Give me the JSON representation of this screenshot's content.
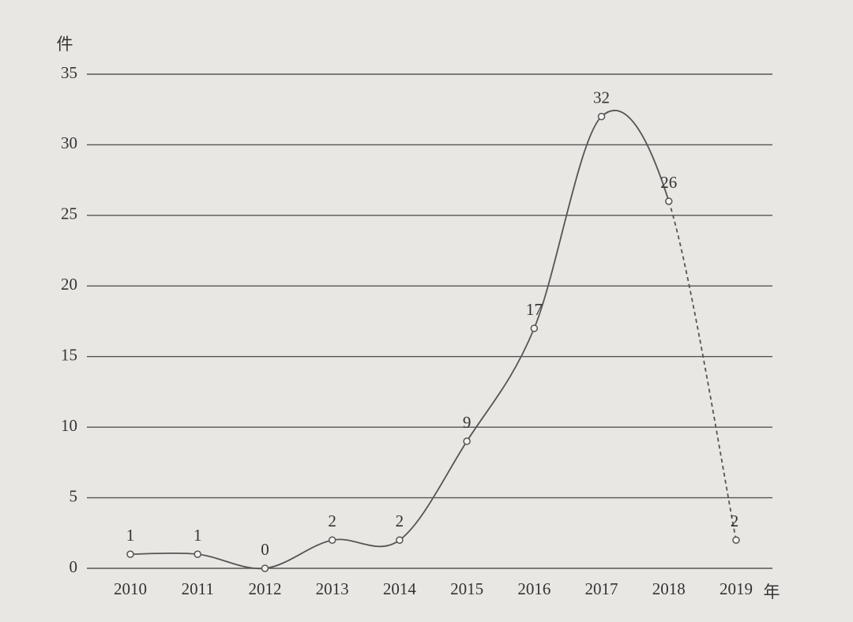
{
  "chart_data": {
    "type": "line",
    "y_label": "件",
    "x_label": "年",
    "categories": [
      "2010",
      "2011",
      "2012",
      "2013",
      "2014",
      "2015",
      "2016",
      "2017",
      "2018",
      "2019"
    ],
    "series": [
      {
        "values": [
          1,
          1,
          0,
          2,
          2,
          9,
          17,
          32,
          26,
          2
        ],
        "color": "#555555",
        "segment_styles": [
          "solid",
          "solid",
          "solid",
          "solid",
          "solid",
          "solid",
          "solid",
          "solid",
          "solid",
          "dashed"
        ]
      }
    ],
    "ylim": [
      0,
      35
    ],
    "yticks": [
      0,
      5,
      10,
      15,
      20,
      25,
      30,
      35
    ],
    "grid": true,
    "smooth": true
  }
}
